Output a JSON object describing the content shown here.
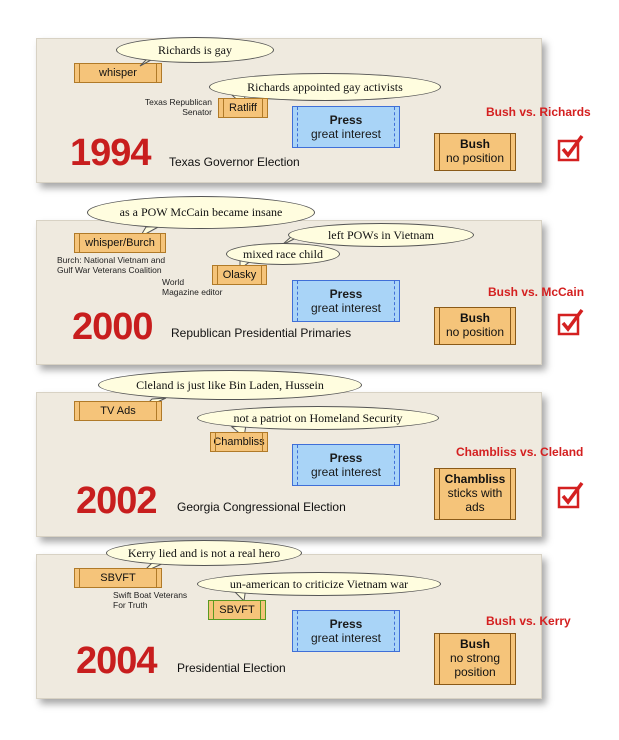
{
  "colors": {
    "year_red": "#c81e1e",
    "matchup_red": "#d42020",
    "box_orange": "#f5c47a",
    "press_blue": "#a9d4f7",
    "press_border": "#3f6fd8",
    "panel_bg": "#efeadf",
    "bubble_bg": "#fffddf",
    "check_red": "#d42020"
  },
  "panels": [
    {
      "year": "1994",
      "election": "Texas Governor Election",
      "matchup": "Bush vs. Richards",
      "bubble1": "Richards is gay",
      "bubble2": "Richards appointed gay activists",
      "source": "whisper",
      "agent": "Ratliff",
      "agent_note": "Texas Republican\nSenator",
      "press_title": "Press",
      "press_sub": "great interest",
      "position_title": "Bush",
      "position_sub": "no position",
      "check_icon": "checkbox-check-icon"
    },
    {
      "year": "2000",
      "election": "Republican Presidential Primaries",
      "matchup": "Bush vs. McCain",
      "bubble1": "as a POW McCain became insane",
      "bubble2": "left POWs in Vietnam",
      "bubble3": "mixed race child",
      "source": "whisper/Burch",
      "source_note": "Burch: National Vietnam and\nGulf War Veterans Coalition",
      "agent": "Olasky",
      "agent_note": "World\nMagazine editor",
      "press_title": "Press",
      "press_sub": "great interest",
      "position_title": "Bush",
      "position_sub": "no position",
      "check_icon": "checkbox-check-icon"
    },
    {
      "year": "2002",
      "election": "Georgia Congressional Election",
      "matchup": "Chambliss vs. Cleland",
      "bubble1": "Cleland is just like Bin Laden, Hussein",
      "bubble2": "not a patriot on Homeland Security",
      "source": "TV Ads",
      "agent": "Chambliss",
      "press_title": "Press",
      "press_sub": "great interest",
      "position_title": "Chambliss",
      "position_sub": "sticks with\nads",
      "check_icon": "checkbox-check-icon"
    },
    {
      "year": "2004",
      "election": "Presidential Election",
      "matchup": "Bush vs. Kerry",
      "bubble1": "Kerry lied and is not a real hero",
      "bubble2": "un-american to criticize Vietnam war",
      "source": "SBVFT",
      "source_note": "Swift Boat Veterans\nFor Truth",
      "agent": "SBVFT",
      "press_title": "Press",
      "press_sub": "great interest",
      "position_title": "Bush",
      "position_sub": "no strong\nposition"
    }
  ]
}
